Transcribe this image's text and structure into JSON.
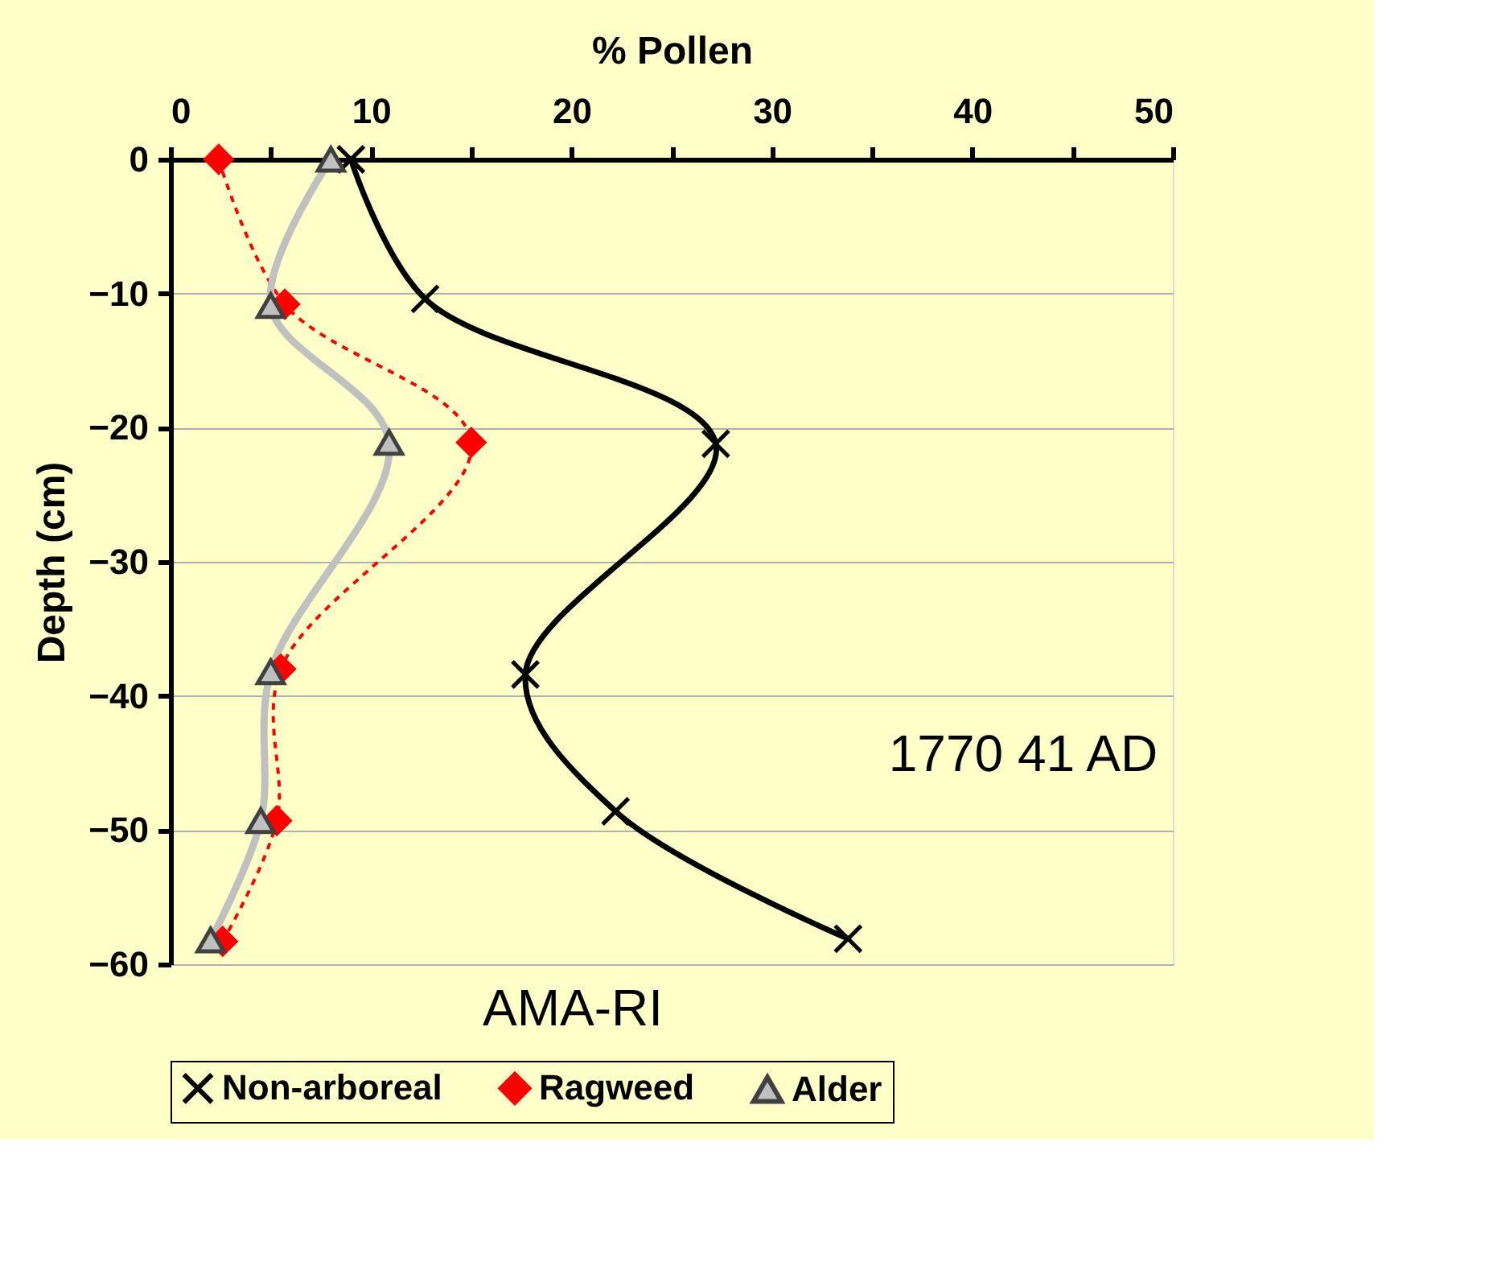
{
  "chart_data": {
    "type": "line",
    "xlabel": "% Pollen",
    "ylabel": "Depth (cm)",
    "xlim": [
      0,
      50
    ],
    "xticks": [
      0,
      {
        "value": 5,
        "label": null
      },
      10,
      {
        "value": 15,
        "label": null
      },
      20,
      {
        "value": 25,
        "label": null
      },
      30,
      {
        "value": 35,
        "label": null
      },
      40,
      {
        "value": 45,
        "label": null
      },
      50
    ],
    "ylim": [
      -60,
      0
    ],
    "yticks": [
      0,
      -10,
      -20,
      -30,
      -40,
      -50,
      -60
    ],
    "grid": "y",
    "legend": "bottom",
    "annotations": [
      "1770    41 AD",
      "AMA-RI"
    ],
    "series": [
      {
        "name": "Non-arboreal",
        "color": "#000000",
        "marker": "cross",
        "line_style": "solid",
        "x": [
          9.0,
          12.7,
          27.2,
          17.7,
          22.2,
          33.8
        ],
        "values": [
          0,
          -10.4,
          -21.2,
          -38.4,
          -48.6,
          -58.1
        ]
      },
      {
        "name": "Ragweed",
        "color": "#ff0000",
        "marker": "diamond",
        "line_style": "dashed",
        "x": [
          2.4,
          5.7,
          15.0,
          5.5,
          5.3,
          2.6
        ],
        "values": [
          0,
          -10.8,
          -21.1,
          -38.0,
          -49.3,
          -58.3
        ]
      },
      {
        "name": "Alder",
        "color": "#c0c0c0",
        "marker": "triangle",
        "line_style": "solid",
        "x": [
          8.0,
          5.0,
          10.9,
          5.0,
          4.5,
          2.0
        ],
        "values": [
          0,
          -10.9,
          -21.1,
          -38.2,
          -49.3,
          -58.2
        ]
      }
    ]
  }
}
